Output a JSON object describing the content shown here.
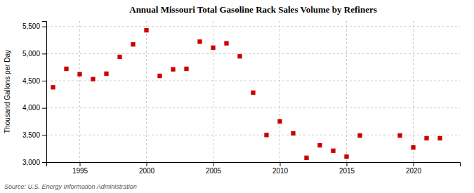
{
  "chart_data": {
    "type": "scatter",
    "title": "Annual Missouri Total Gasoline Rack Sales Volume by Refiners",
    "ylabel": "Thousand Gallons per Day",
    "annotations": [
      "Source: U.S. Energy Information Administration"
    ],
    "x": [
      1993,
      1994,
      1995,
      1996,
      1997,
      1998,
      1999,
      2000,
      2001,
      2002,
      2003,
      2004,
      2005,
      2006,
      2007,
      2008,
      2009,
      2010,
      2011,
      2012,
      2013,
      2014,
      2015,
      2016,
      2019,
      2020,
      2021,
      2022
    ],
    "values": [
      4380,
      4720,
      4620,
      4530,
      4630,
      4940,
      5170,
      5430,
      4590,
      4710,
      4720,
      5220,
      5110,
      5190,
      4950,
      4280,
      3500,
      3750,
      3530,
      3080,
      3310,
      3210,
      3100,
      3490,
      3490,
      3270,
      3440,
      3440
    ],
    "color": "#cc0000",
    "marker": "square",
    "xlim": [
      1992.5,
      2023.5
    ],
    "ylim": [
      3000,
      5600
    ],
    "xticks": [
      1995,
      2000,
      2005,
      2010,
      2015,
      2020
    ],
    "yticks": [
      {
        "value": 3000,
        "label": "3,000"
      },
      {
        "value": 3500,
        "label": "3,500"
      },
      {
        "value": 4000,
        "label": "4,000"
      },
      {
        "value": 4500,
        "label": "4,500"
      },
      {
        "value": 5000,
        "label": "5,000"
      },
      {
        "value": 5500,
        "label": "5,500"
      }
    ],
    "grid": true
  }
}
